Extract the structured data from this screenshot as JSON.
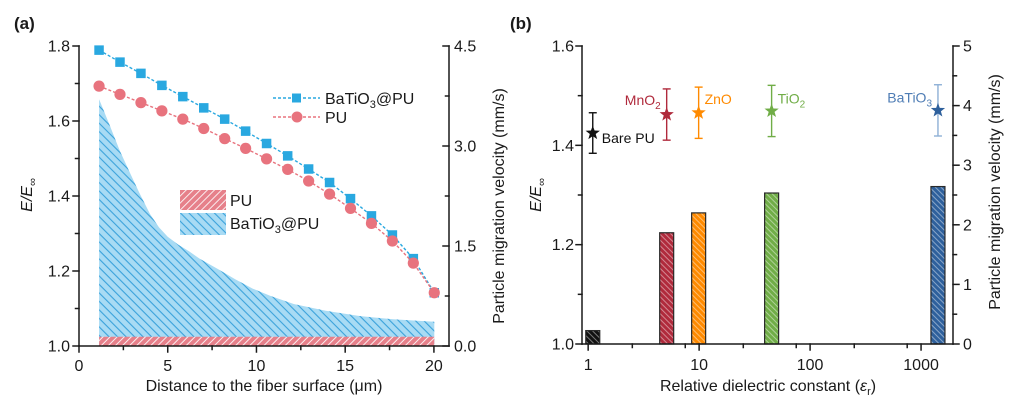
{
  "chart_data": [
    {
      "panel_label": "(a)",
      "type": "line",
      "title": "",
      "xlabel": "Distance to the fiber surface (μm)",
      "ylabel": {
        "main": "E/E",
        "sub": "∞"
      },
      "y2label": "Particle migration velocity (mm/s)",
      "xlim": [
        0,
        20.85
      ],
      "ylim": [
        1.0,
        1.8
      ],
      "y2lim": [
        0,
        4.5
      ],
      "xticks": [
        0,
        5,
        10,
        15,
        20
      ],
      "xtick_labels": [
        "0",
        "5",
        "10",
        "15",
        "20"
      ],
      "xminor": [
        2.5,
        7.5,
        12.5,
        17.5
      ],
      "yticks": [
        1.0,
        1.2,
        1.4,
        1.6,
        1.8
      ],
      "ytick_labels": [
        "1.0",
        "1.2",
        "1.4",
        "1.6",
        "1.8"
      ],
      "yminor": [
        1.1,
        1.3,
        1.5,
        1.7
      ],
      "y2ticks": [
        0,
        1.5,
        3.0,
        4.5
      ],
      "y2tick_labels": [
        "0.0",
        "1.5",
        "3.0",
        "4.5"
      ],
      "y2minor": [
        0.75,
        2.25,
        3.75
      ],
      "grid": false,
      "series": [
        {
          "name": "BaTiO3@PU",
          "kind": "line",
          "axis": "y",
          "marker": "square",
          "line_style": "dashed",
          "color": "#29a8e0",
          "x": [
            1.13,
            2.31,
            3.49,
            4.67,
            5.85,
            7.03,
            8.21,
            9.39,
            10.57,
            11.76,
            12.94,
            14.12,
            15.3,
            16.48,
            17.66,
            18.84,
            20.02
          ],
          "y": [
            1.789,
            1.757,
            1.727,
            1.695,
            1.665,
            1.635,
            1.605,
            1.573,
            1.54,
            1.507,
            1.472,
            1.436,
            1.393,
            1.347,
            1.296,
            1.233,
            1.142
          ]
        },
        {
          "name": "PU",
          "kind": "line",
          "axis": "y",
          "marker": "circle",
          "line_style": "dashed",
          "color": "#e8737e",
          "x": [
            1.13,
            2.31,
            3.49,
            4.67,
            5.85,
            7.03,
            8.21,
            9.39,
            10.57,
            11.76,
            12.94,
            14.12,
            15.3,
            16.48,
            17.66,
            18.84,
            20.02
          ],
          "y": [
            1.693,
            1.671,
            1.649,
            1.627,
            1.605,
            1.58,
            1.553,
            1.527,
            1.499,
            1.471,
            1.44,
            1.405,
            1.367,
            1.327,
            1.28,
            1.221,
            1.142
          ]
        },
        {
          "name": "BaTiO3@PU",
          "kind": "area",
          "axis": "y2",
          "fill": "#a8dbf4",
          "hatch": "#3aa2db",
          "x": [
            1.13,
            1.7,
            2.3,
            2.9,
            3.4,
            4.0,
            4.5,
            5.0,
            5.6,
            6.2,
            6.8,
            7.8,
            8.8,
            9.8,
            10.8,
            12.1,
            13.9,
            15.8,
            17.7,
            20.02
          ],
          "y": [
            3.7,
            3.33,
            2.93,
            2.58,
            2.3,
            1.98,
            1.78,
            1.64,
            1.52,
            1.42,
            1.31,
            1.16,
            1.0,
            0.86,
            0.75,
            0.63,
            0.53,
            0.45,
            0.4,
            0.365
          ]
        },
        {
          "name": "PU",
          "kind": "area",
          "axis": "y2",
          "fill": "#e6808a",
          "hatch": "#ffffff",
          "x": [
            1.13,
            20.02
          ],
          "y": [
            0.14,
            0.14
          ]
        }
      ],
      "legend": {
        "lines_placement": "top-right",
        "areas_placement": "center-left",
        "lines": [
          {
            "label": {
              "base": "BaTiO",
              "sub": "3",
              "rest": "@PU"
            },
            "marker": "square"
          },
          {
            "label": {
              "base": "PU",
              "sub": "",
              "rest": ""
            },
            "marker": "circle"
          }
        ],
        "areas": [
          {
            "label": {
              "base": "PU",
              "sub": "",
              "rest": ""
            }
          },
          {
            "label": {
              "base": "BaTiO",
              "sub": "3",
              "rest": "@PU"
            }
          }
        ]
      }
    },
    {
      "panel_label": "(b)",
      "type": "bar",
      "title": "",
      "xlabel": {
        "pre": "Relative dielectric constant (",
        "sym": "ε",
        "sub": "r",
        "post": ")"
      },
      "ylabel": {
        "main": "E/E",
        "sub": "∞"
      },
      "y2label": "Particle migration velocity (mm/s)",
      "xscale": "log",
      "xlim": [
        0.88,
        1940
      ],
      "ylim": [
        1.0,
        1.6
      ],
      "y2lim": [
        0,
        5
      ],
      "xticks": [
        1,
        10,
        100,
        1000
      ],
      "xtick_labels": [
        "1",
        "10",
        "100",
        "1000"
      ],
      "xminor": [
        2.5,
        7.5,
        25,
        75,
        250,
        750
      ],
      "yticks": [
        1.0,
        1.2,
        1.4,
        1.6
      ],
      "ytick_labels": [
        "1.0",
        "1.2",
        "1.4",
        "1.6"
      ],
      "yminor": [
        1.1,
        1.3,
        1.5
      ],
      "y2ticks": [
        0,
        1,
        2,
        3,
        4,
        5
      ],
      "y2tick_labels": [
        "0",
        "1",
        "2",
        "3",
        "4",
        "5"
      ],
      "y2minor": [
        0.5,
        1.5,
        2.5,
        3.5,
        4.5
      ],
      "grid": false,
      "categories": [
        {
          "base": "Bare PU",
          "sub": ""
        },
        {
          "base": "MnO",
          "sub": "2"
        },
        {
          "base": "ZnO",
          "sub": ""
        },
        {
          "base": "TiO",
          "sub": "2"
        },
        {
          "base": "BaTiO",
          "sub": "3"
        }
      ],
      "epsilon_r": [
        1.1,
        5.1,
        9.9,
        45,
        1420
      ],
      "colors": [
        "#111111",
        "#b02a3c",
        "#ff8a00",
        "#70ad47",
        "#2e609c"
      ],
      "errorbar_colors": [
        "#111111",
        "#b02a3c",
        "#ff8a00",
        "#70ad47",
        "#8eb0d6"
      ],
      "label_colors": [
        "#111111",
        "#b02a3c",
        "#ff8a00",
        "#70ad47",
        "#4f7db5"
      ],
      "series": [
        {
          "name": "E/E∞",
          "kind": "bar",
          "axis": "y",
          "values": [
            1.027,
            1.224,
            1.264,
            1.304,
            1.317
          ]
        },
        {
          "name": "Particle migration velocity",
          "kind": "scatter",
          "marker": "star",
          "axis": "y2",
          "values": [
            3.54,
            3.85,
            3.88,
            3.91,
            3.92
          ],
          "errors": [
            0.34,
            0.43,
            0.43,
            0.43,
            0.43
          ]
        }
      ]
    }
  ]
}
